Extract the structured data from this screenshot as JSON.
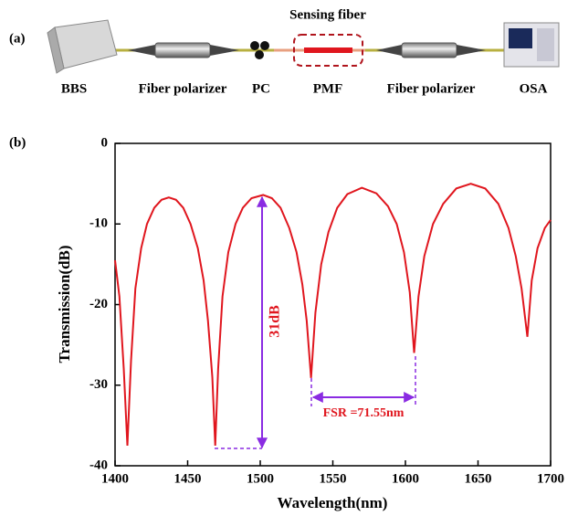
{
  "panel_a": {
    "label": "(a)",
    "title": "Sensing fiber",
    "components": [
      "BBS",
      "Fiber polarizer",
      "PC",
      "PMF",
      "Fiber polarizer",
      "OSA"
    ]
  },
  "chart_data": {
    "type": "line",
    "label": "(b)",
    "x_label": "Wavelength(nm)",
    "y_label": "Transmission(dB)",
    "xlim": [
      1400,
      1700
    ],
    "xticks": [
      1400,
      1450,
      1500,
      1550,
      1600,
      1650,
      1700
    ],
    "ylim": [
      -40,
      0
    ],
    "yticks": [
      -40,
      -30,
      -20,
      -10,
      0
    ],
    "annotations": [
      "31dB",
      "FSR =71.55nm"
    ],
    "series": [
      {
        "color": "#e0161e",
        "x": [
          1400,
          1403,
          1406,
          1408.5,
          1411,
          1414,
          1418,
          1422,
          1427,
          1432,
          1437,
          1442,
          1447,
          1452,
          1457,
          1461,
          1464,
          1467,
          1469,
          1471,
          1474,
          1478,
          1483,
          1488,
          1494,
          1502,
          1508,
          1514,
          1520,
          1525,
          1529,
          1532,
          1535,
          1538,
          1542,
          1547,
          1553,
          1560,
          1570,
          1580,
          1588,
          1594,
          1599,
          1603,
          1606,
          1609,
          1613,
          1619,
          1626,
          1635,
          1645,
          1655,
          1664,
          1671,
          1676,
          1680,
          1684,
          1687,
          1691,
          1696,
          1700
        ],
        "values": [
          -14.5,
          -19,
          -28,
          -37.5,
          -27,
          -18,
          -13,
          -10,
          -8,
          -7,
          -6.7,
          -7,
          -8,
          -10,
          -13,
          -17,
          -22,
          -29,
          -37.5,
          -28,
          -19,
          -13.5,
          -10,
          -8,
          -6.8,
          -6.4,
          -6.8,
          -8,
          -10.5,
          -13.5,
          -17.5,
          -22,
          -29.1,
          -21,
          -15,
          -11,
          -8,
          -6.3,
          -5.5,
          -6.2,
          -7.8,
          -10,
          -13.5,
          -18.5,
          -26,
          -19,
          -14,
          -10,
          -7.5,
          -5.6,
          -5,
          -5.6,
          -7.5,
          -10.5,
          -14,
          -18,
          -24,
          -17,
          -13,
          -10.5,
          -9.5
        ]
      }
    ]
  }
}
